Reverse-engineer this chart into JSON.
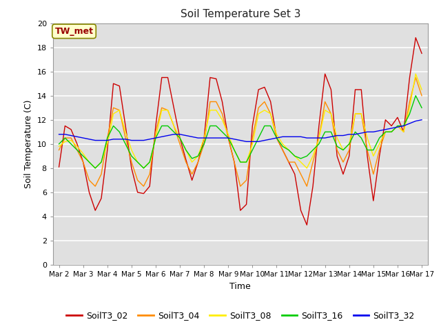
{
  "title": "Soil Temperature Set 3",
  "xlabel": "Time",
  "ylabel": "Soil Temperature (C)",
  "annotation": "TW_met",
  "ylim": [
    0,
    20
  ],
  "plot_bg_color": "#e0e0e0",
  "fig_bg_color": "#ffffff",
  "series": {
    "SoilT3_02": {
      "color": "#cc0000",
      "x": [
        0,
        0.5,
        1,
        1.5,
        2,
        2.5,
        3,
        3.5,
        4,
        4.5,
        5,
        5.5,
        6,
        6.5,
        7,
        7.5,
        8,
        8.5,
        9,
        9.5,
        10,
        10.5,
        11,
        11.5,
        12,
        12.5,
        13,
        13.5,
        14,
        14.5,
        15,
        15.5,
        16,
        16.5,
        17,
        17.5,
        18,
        18.5,
        19,
        19.5,
        20,
        20.5,
        21,
        21.5,
        22,
        22.5,
        23,
        23.5,
        24,
        24.5,
        25,
        25.5,
        26,
        26.5,
        27,
        27.5,
        28,
        28.5,
        29,
        29.5,
        30
      ],
      "y": [
        8.1,
        11.5,
        11.2,
        10.0,
        8.5,
        6.0,
        4.5,
        5.5,
        9.5,
        15.0,
        14.8,
        11.5,
        8.0,
        6.0,
        5.9,
        6.5,
        11.5,
        15.5,
        15.5,
        13.0,
        10.5,
        8.7,
        7.0,
        8.5,
        10.5,
        15.5,
        15.4,
        13.5,
        10.5,
        8.5,
        4.5,
        5.0,
        11.5,
        14.5,
        14.7,
        13.5,
        10.5,
        9.5,
        8.5,
        7.5,
        4.5,
        3.3,
        6.5,
        11.5,
        15.8,
        14.5,
        9.0,
        7.5,
        9.0,
        14.5,
        14.5,
        9.0,
        5.3,
        9.0,
        12.0,
        11.5,
        12.2,
        11.0,
        15.5,
        18.8,
        17.5
      ]
    },
    "SoilT3_04": {
      "color": "#ff8c00",
      "x": [
        0,
        0.5,
        1,
        1.5,
        2,
        2.5,
        3,
        3.5,
        4,
        4.5,
        5,
        5.5,
        6,
        6.5,
        7,
        7.5,
        8,
        8.5,
        9,
        9.5,
        10,
        10.5,
        11,
        11.5,
        12,
        12.5,
        13,
        13.5,
        14,
        14.5,
        15,
        15.5,
        16,
        16.5,
        17,
        17.5,
        18,
        18.5,
        19,
        19.5,
        20,
        20.5,
        21,
        21.5,
        22,
        22.5,
        23,
        23.5,
        24,
        24.5,
        25,
        25.5,
        26,
        26.5,
        27,
        27.5,
        28,
        28.5,
        29,
        29.5,
        30
      ],
      "y": [
        9.5,
        10.5,
        10.5,
        9.5,
        8.5,
        7.0,
        6.5,
        7.5,
        10.5,
        13.0,
        12.8,
        10.5,
        8.5,
        7.0,
        6.5,
        7.5,
        11.0,
        13.0,
        12.8,
        11.5,
        10.0,
        8.5,
        7.5,
        8.5,
        10.0,
        13.5,
        13.5,
        12.5,
        10.5,
        8.5,
        6.5,
        7.0,
        10.5,
        13.0,
        13.5,
        12.5,
        10.5,
        9.5,
        8.5,
        8.5,
        7.5,
        6.5,
        8.5,
        10.5,
        13.5,
        12.5,
        9.5,
        8.5,
        9.5,
        12.5,
        12.5,
        9.5,
        7.5,
        9.5,
        11.0,
        11.0,
        11.5,
        11.0,
        13.5,
        15.5,
        14.0
      ]
    },
    "SoilT3_08": {
      "color": "#ffee00",
      "x": [
        0,
        0.5,
        1,
        1.5,
        2,
        2.5,
        3,
        3.5,
        4,
        4.5,
        5,
        5.5,
        6,
        6.5,
        7,
        7.5,
        8,
        8.5,
        9,
        9.5,
        10,
        10.5,
        11,
        11.5,
        12,
        12.5,
        13,
        13.5,
        14,
        14.5,
        15,
        15.5,
        16,
        16.5,
        17,
        17.5,
        18,
        18.5,
        19,
        19.5,
        20,
        20.5,
        21,
        21.5,
        22,
        22.5,
        23,
        23.5,
        24,
        24.5,
        25,
        25.5,
        26,
        26.5,
        27,
        27.5,
        28,
        28.5,
        29,
        29.5,
        30
      ],
      "y": [
        9.8,
        10.2,
        10.3,
        9.8,
        9.2,
        8.5,
        8.0,
        8.5,
        10.0,
        12.5,
        12.8,
        11.0,
        9.5,
        8.5,
        8.0,
        8.5,
        10.5,
        12.8,
        12.8,
        11.5,
        10.5,
        9.5,
        8.5,
        9.0,
        10.5,
        12.8,
        12.8,
        12.0,
        10.8,
        9.5,
        8.5,
        8.5,
        10.0,
        12.5,
        12.8,
        12.5,
        10.8,
        10.0,
        9.5,
        9.0,
        8.5,
        8.0,
        9.0,
        10.5,
        12.8,
        12.5,
        10.5,
        9.5,
        10.0,
        12.5,
        12.5,
        10.5,
        9.0,
        10.0,
        11.0,
        11.0,
        11.5,
        11.0,
        13.0,
        15.8,
        14.5
      ]
    },
    "SoilT3_16": {
      "color": "#00cc00",
      "x": [
        0,
        0.5,
        1,
        1.5,
        2,
        2.5,
        3,
        3.5,
        4,
        4.5,
        5,
        5.5,
        6,
        6.5,
        7,
        7.5,
        8,
        8.5,
        9,
        9.5,
        10,
        10.5,
        11,
        11.5,
        12,
        12.5,
        13,
        13.5,
        14,
        14.5,
        15,
        15.5,
        16,
        16.5,
        17,
        17.5,
        18,
        18.5,
        19,
        19.5,
        20,
        20.5,
        21,
        21.5,
        22,
        22.5,
        23,
        23.5,
        24,
        24.5,
        25,
        25.5,
        26,
        26.5,
        27,
        27.5,
        28,
        28.5,
        29,
        29.5,
        30
      ],
      "y": [
        10.0,
        10.5,
        10.0,
        9.5,
        9.0,
        8.5,
        8.0,
        8.5,
        10.5,
        11.5,
        11.0,
        10.0,
        9.0,
        8.5,
        8.0,
        8.5,
        10.5,
        11.5,
        11.5,
        11.0,
        10.5,
        9.5,
        8.8,
        9.0,
        10.0,
        11.5,
        11.5,
        11.0,
        10.5,
        9.5,
        8.5,
        8.5,
        9.5,
        10.5,
        11.5,
        11.5,
        10.5,
        9.8,
        9.5,
        9.0,
        8.8,
        9.0,
        9.5,
        10.0,
        11.0,
        11.0,
        9.8,
        9.5,
        10.0,
        11.0,
        10.5,
        9.5,
        9.5,
        10.5,
        11.0,
        11.0,
        11.5,
        11.5,
        12.5,
        14.0,
        13.0
      ]
    },
    "SoilT3_32": {
      "color": "#0000ee",
      "x": [
        0,
        0.5,
        1,
        1.5,
        2,
        2.5,
        3,
        3.5,
        4,
        4.5,
        5,
        5.5,
        6,
        6.5,
        7,
        7.5,
        8,
        8.5,
        9,
        9.5,
        10,
        10.5,
        11,
        11.5,
        12,
        12.5,
        13,
        13.5,
        14,
        14.5,
        15,
        15.5,
        16,
        16.5,
        17,
        17.5,
        18,
        18.5,
        19,
        19.5,
        20,
        20.5,
        21,
        21.5,
        22,
        22.5,
        23,
        23.5,
        24,
        24.5,
        25,
        25.5,
        26,
        26.5,
        27,
        27.5,
        28,
        28.5,
        29,
        29.5,
        30
      ],
      "y": [
        10.8,
        10.8,
        10.7,
        10.6,
        10.5,
        10.4,
        10.3,
        10.3,
        10.3,
        10.4,
        10.4,
        10.4,
        10.3,
        10.3,
        10.3,
        10.4,
        10.5,
        10.6,
        10.7,
        10.8,
        10.8,
        10.7,
        10.6,
        10.5,
        10.5,
        10.5,
        10.5,
        10.5,
        10.5,
        10.4,
        10.3,
        10.2,
        10.2,
        10.2,
        10.3,
        10.4,
        10.5,
        10.6,
        10.6,
        10.6,
        10.6,
        10.5,
        10.5,
        10.5,
        10.5,
        10.6,
        10.7,
        10.7,
        10.8,
        10.8,
        10.9,
        11.0,
        11.0,
        11.1,
        11.2,
        11.3,
        11.4,
        11.5,
        11.7,
        11.9,
        12.0
      ]
    }
  },
  "xtick_labels": [
    "Mar 2",
    "Mar 3",
    "Mar 4",
    "Mar 5",
    "Mar 6",
    "Mar 7",
    "Mar 8",
    "Mar 9",
    "Mar 10",
    "Mar 11",
    "Mar 12",
    "Mar 13",
    "Mar 14",
    "Mar 15",
    "Mar 16",
    "Mar 17"
  ],
  "xtick_positions": [
    0,
    2,
    4,
    6,
    8,
    10,
    12,
    14,
    16,
    18,
    20,
    22,
    24,
    26,
    28,
    30
  ],
  "ytick_values": [
    0,
    2,
    4,
    6,
    8,
    10,
    12,
    14,
    16,
    18,
    20
  ],
  "legend_entries": [
    "SoilT3_02",
    "SoilT3_04",
    "SoilT3_08",
    "SoilT3_16",
    "SoilT3_32"
  ],
  "legend_colors": [
    "#cc0000",
    "#ff8c00",
    "#ffee00",
    "#00cc00",
    "#0000ee"
  ]
}
